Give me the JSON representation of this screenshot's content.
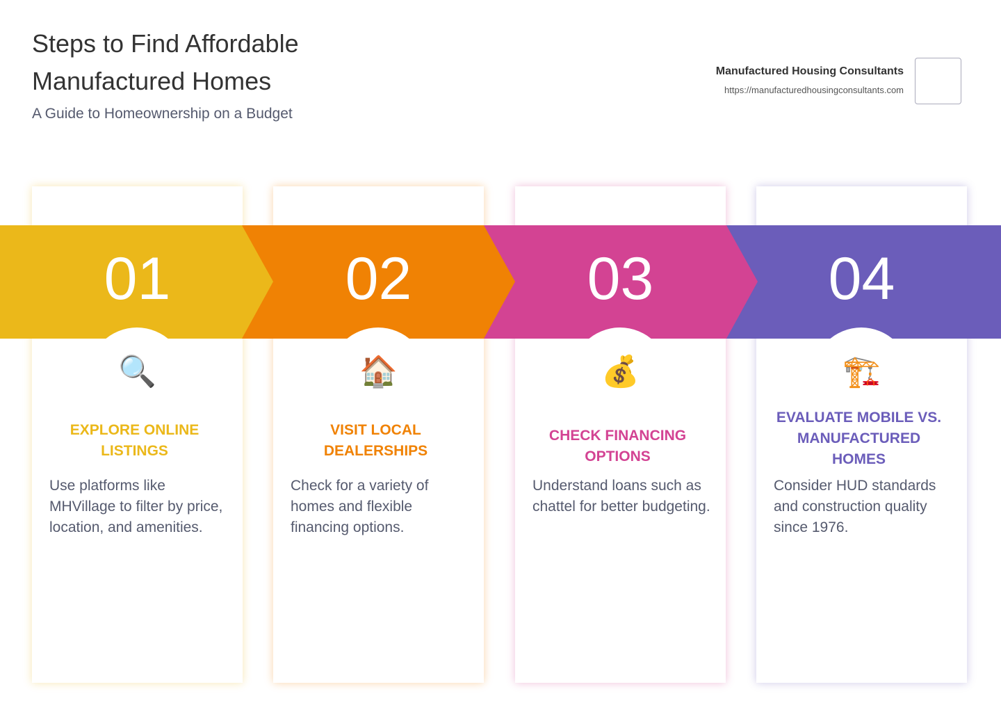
{
  "header": {
    "title": "Steps to Find Affordable Manufactured Homes",
    "subtitle": "A Guide to Homeownership on a Budget"
  },
  "brand": {
    "name": "Manufactured Housing Consultants",
    "url": "https://manufacturedhousingconsultants.com"
  },
  "steps": [
    {
      "number": "01",
      "icon": "🔍",
      "title": "EXPLORE ONLINE LISTINGS",
      "text": "Use platforms like MHVillage to filter by price, location, and amenities.",
      "color": "#EBB81A"
    },
    {
      "number": "02",
      "icon": "🏠",
      "title": "VISIT LOCAL DEALERSHIPS",
      "text": "Check for a variety of homes and flexible financing options.",
      "color": "#F08204"
    },
    {
      "number": "03",
      "icon": "💰",
      "title": "CHECK FINANCING OPTIONS",
      "text": "Understand loans such as chattel for better budgeting.",
      "color": "#D34393"
    },
    {
      "number": "04",
      "icon": "🏗️",
      "title": "EVALUATE MOBILE VS. MANUFACTURED HOMES",
      "text": "Consider HUD standards and construction quality since 1976.",
      "color": "#6B5DBA"
    }
  ]
}
